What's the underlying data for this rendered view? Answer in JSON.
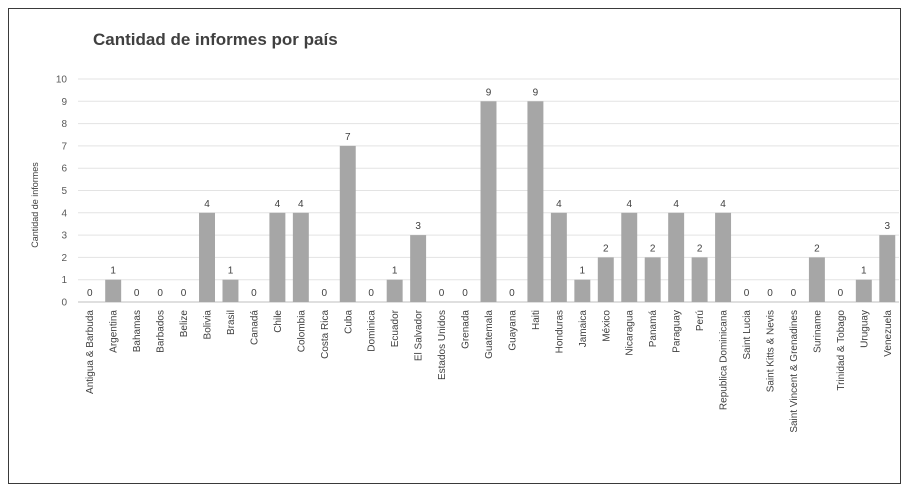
{
  "chart_data": {
    "type": "bar",
    "title": "Cantidad de informes por país",
    "xlabel": "",
    "ylabel": "Cantidad de informes",
    "ylim": [
      0,
      10
    ],
    "yticks": [
      "0",
      "1",
      "2",
      "3",
      "4",
      "5",
      "6",
      "7",
      "8",
      "9",
      "10"
    ],
    "grid": true,
    "bar_color": "#a6a6a6",
    "categories": [
      "Antigua & Barbuda",
      "Argentina",
      "Bahamas",
      "Barbados",
      "Belize",
      "Bolivia",
      "Brasil",
      "Canadá",
      "Chile",
      "Colombia",
      "Costa Rica",
      "Cuba",
      "Dominica",
      "Ecuador",
      "El Salvador",
      "Estados Unidos",
      "Grenada",
      "Guatemala",
      "Guayana",
      "Haiti",
      "Honduras",
      "Jamaica",
      "México",
      "Nicaragua",
      "Panamá",
      "Paraguay",
      "Perú",
      "Republica Dominicana",
      "Saint Lucia",
      "Saint Kitts & Nevis",
      "Saint Vincent & Grenadines",
      "Suriname",
      "Trinidad & Tobago",
      "Uruguay",
      "Venezuela"
    ],
    "values": [
      0,
      1,
      0,
      0,
      0,
      4,
      1,
      0,
      4,
      4,
      0,
      7,
      0,
      1,
      3,
      0,
      0,
      9,
      0,
      9,
      4,
      1,
      2,
      4,
      2,
      4,
      2,
      4,
      0,
      0,
      0,
      2,
      0,
      1,
      3
    ]
  }
}
